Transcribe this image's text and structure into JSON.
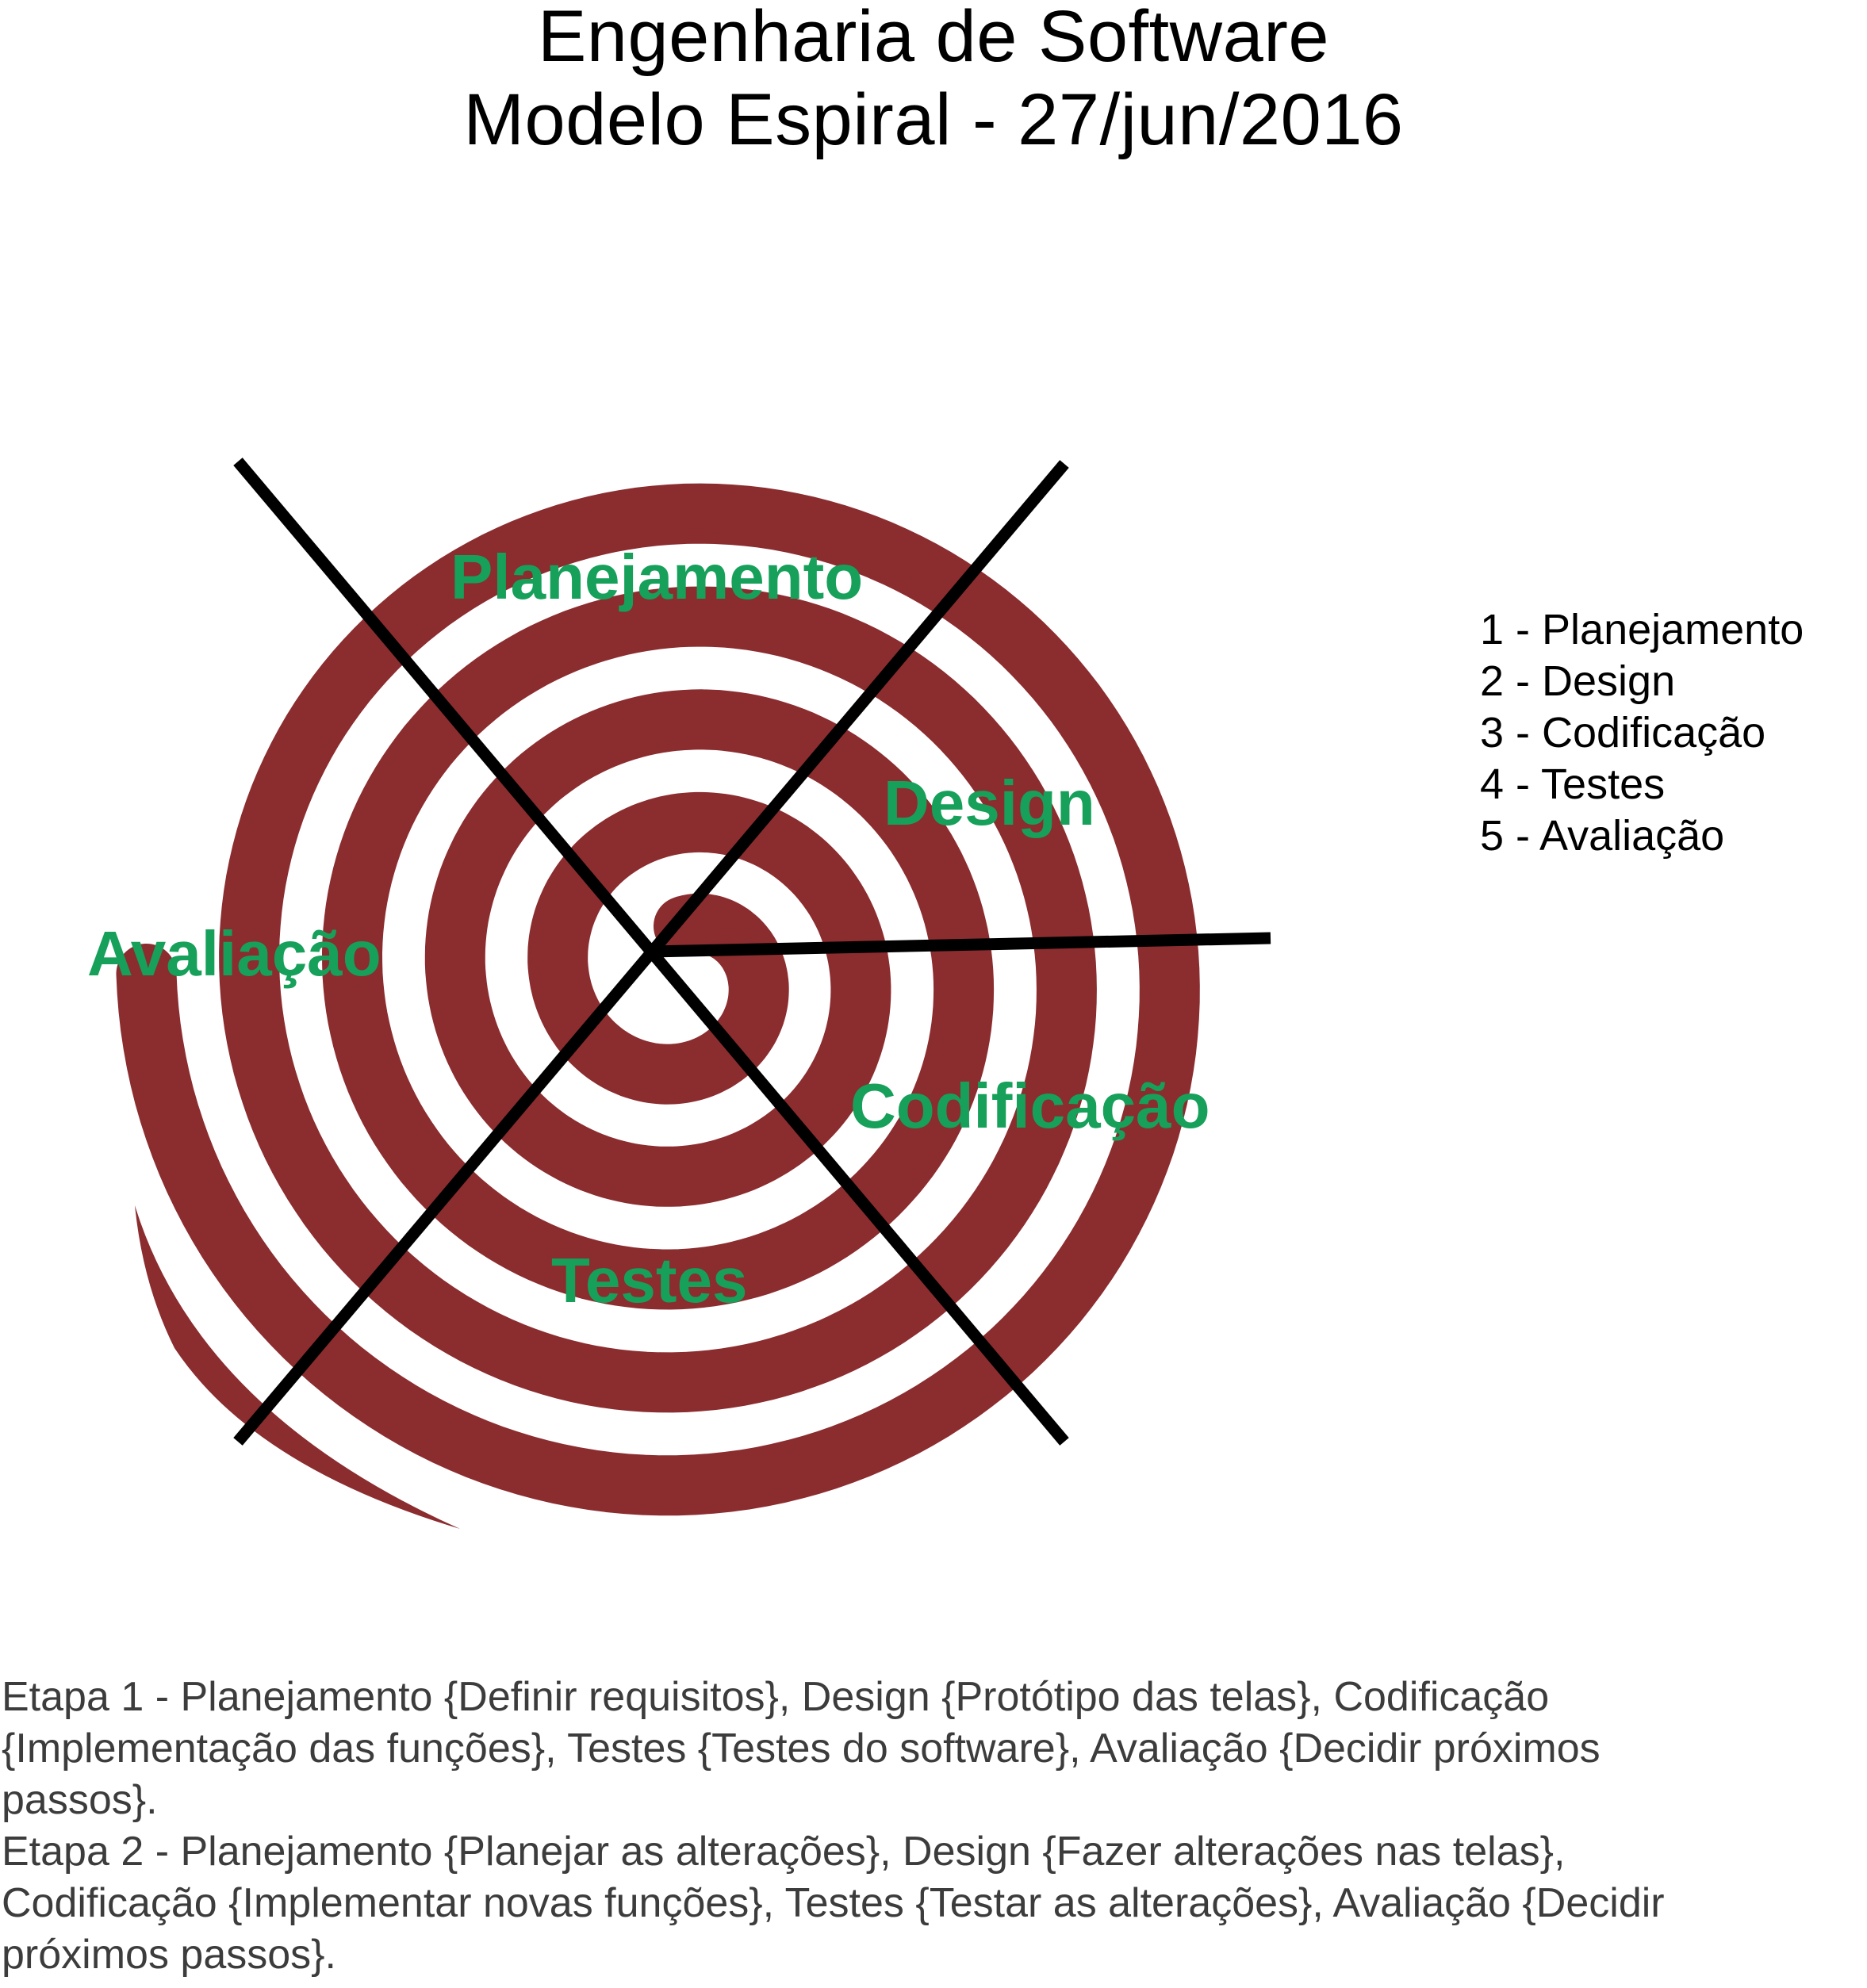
{
  "header": {
    "title_line1": "Engenharia de Software",
    "title_line2": "Modelo Espiral - 27/jun/2016"
  },
  "diagram": {
    "spiral_color": "#8b2c2f",
    "divider_color": "#000000",
    "label_color": "#16a05a",
    "labels": {
      "planejamento": "Planejamento",
      "design": "Design",
      "codificacao": "Codificação",
      "testes": "Testes",
      "avaliacao": "Avaliação"
    }
  },
  "legend": {
    "items": [
      "1 - Planejamento",
      "2 - Design",
      "3 - Codificação",
      "4 - Testes",
      "5 - Avaliação"
    ]
  },
  "notes": {
    "lines": [
      "Etapa 1 - Planejamento {Definir requisitos}, Design {Protótipo das telas}, Codificação",
      "{Implementação das funções}, Testes {Testes do software}, Avaliação {Decidir próximos",
      "passos}.",
      "Etapa 2 - Planejamento {Planejar as alterações}, Design {Fazer alterações nas telas},",
      "Codificação {Implementar novas funções}, Testes {Testar as alterações}, Avaliação {Decidir",
      "próximos passos}."
    ]
  }
}
